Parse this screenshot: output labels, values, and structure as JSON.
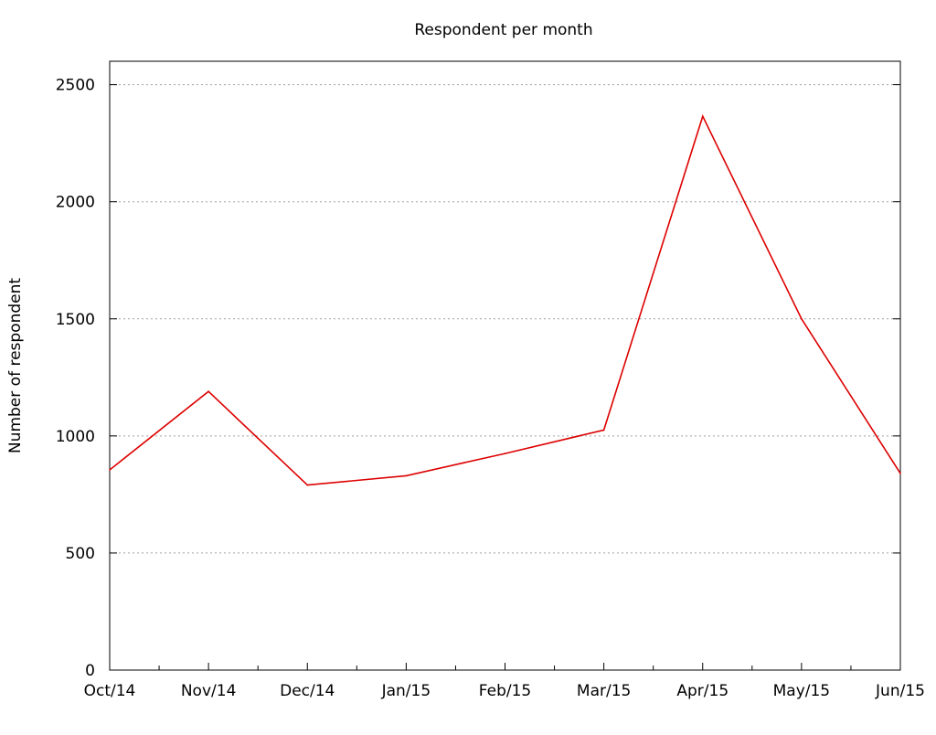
{
  "chart_data": {
    "type": "line",
    "title": "Respondent per month",
    "xlabel": "",
    "ylabel": "Number of respondent",
    "x": [
      "Oct/14",
      "Nov/14",
      "Dec/14",
      "Jan/15",
      "Feb/15",
      "Mar/15",
      "Apr/15",
      "May/15",
      "Jun/15"
    ],
    "series": [
      {
        "values": [
          855,
          1190,
          790,
          830,
          925,
          1025,
          2365,
          1500,
          840
        ],
        "color": "#dd0000"
      }
    ],
    "ylim": [
      0,
      2600
    ],
    "yticks": [
      0,
      500,
      1000,
      1500,
      2000,
      2500
    ],
    "grid": "horizontal dotted"
  }
}
